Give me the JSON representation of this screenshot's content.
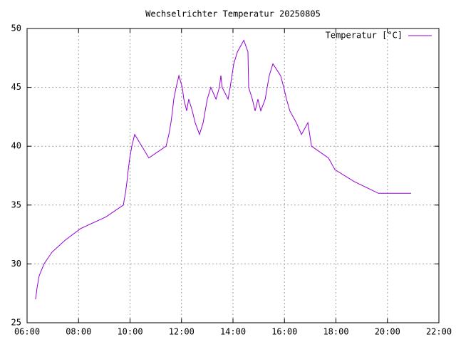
{
  "chart_data": {
    "type": "line",
    "title": "Wechselrichter Temperatur 20250805",
    "x": [
      6.33,
      6.39,
      6.47,
      6.66,
      6.97,
      7.47,
      8.08,
      9.07,
      9.74,
      9.82,
      9.88,
      9.93,
      9.99,
      10.07,
      10.18,
      10.46,
      10.73,
      11.4,
      11.51,
      11.59,
      11.65,
      11.7,
      11.79,
      11.9,
      12.03,
      12.09,
      12.2,
      12.28,
      12.42,
      12.53,
      12.7,
      12.84,
      12.92,
      13.0,
      13.14,
      13.34,
      13.47,
      13.53,
      13.58,
      13.81,
      13.89,
      14.03,
      14.17,
      14.42,
      14.58,
      14.61,
      14.75,
      14.86,
      14.97,
      15.08,
      15.25,
      15.33,
      15.41,
      15.55,
      15.85,
      15.97,
      16.08,
      16.21,
      16.46,
      16.66,
      16.91,
      17.05,
      17.71,
      17.96,
      18.71,
      19.65,
      20.92
    ],
    "series": [
      {
        "name": "Temperatur [°C]",
        "color": "#9400d3",
        "values": [
          27,
          28,
          29,
          30,
          31,
          32,
          33,
          34,
          35,
          36,
          37,
          38,
          39,
          40,
          41,
          40,
          39,
          40,
          41,
          42,
          43,
          44,
          45,
          46,
          45,
          44,
          43,
          44,
          43,
          42,
          41,
          42,
          43,
          44,
          45,
          44,
          45,
          46,
          45,
          44,
          45,
          47,
          48,
          49,
          48,
          45,
          44,
          43,
          44,
          43,
          44,
          45,
          46,
          47,
          46,
          45,
          44,
          43,
          42,
          41,
          42,
          40,
          39,
          38,
          37,
          36,
          36
        ]
      }
    ],
    "xlim": [
      6,
      22
    ],
    "xticks": [
      {
        "value": 6,
        "label": "06:00"
      },
      {
        "value": 8,
        "label": "08:00"
      },
      {
        "value": 10,
        "label": "10:00"
      },
      {
        "value": 12,
        "label": "12:00"
      },
      {
        "value": 14,
        "label": "14:00"
      },
      {
        "value": 16,
        "label": "16:00"
      },
      {
        "value": 18,
        "label": "18:00"
      },
      {
        "value": 20,
        "label": "20:00"
      },
      {
        "value": 22,
        "label": "22:00"
      }
    ],
    "ylim": [
      25,
      50
    ],
    "yticks": [
      25,
      30,
      35,
      40,
      45,
      50
    ],
    "grid": true,
    "legend": "top-right"
  }
}
